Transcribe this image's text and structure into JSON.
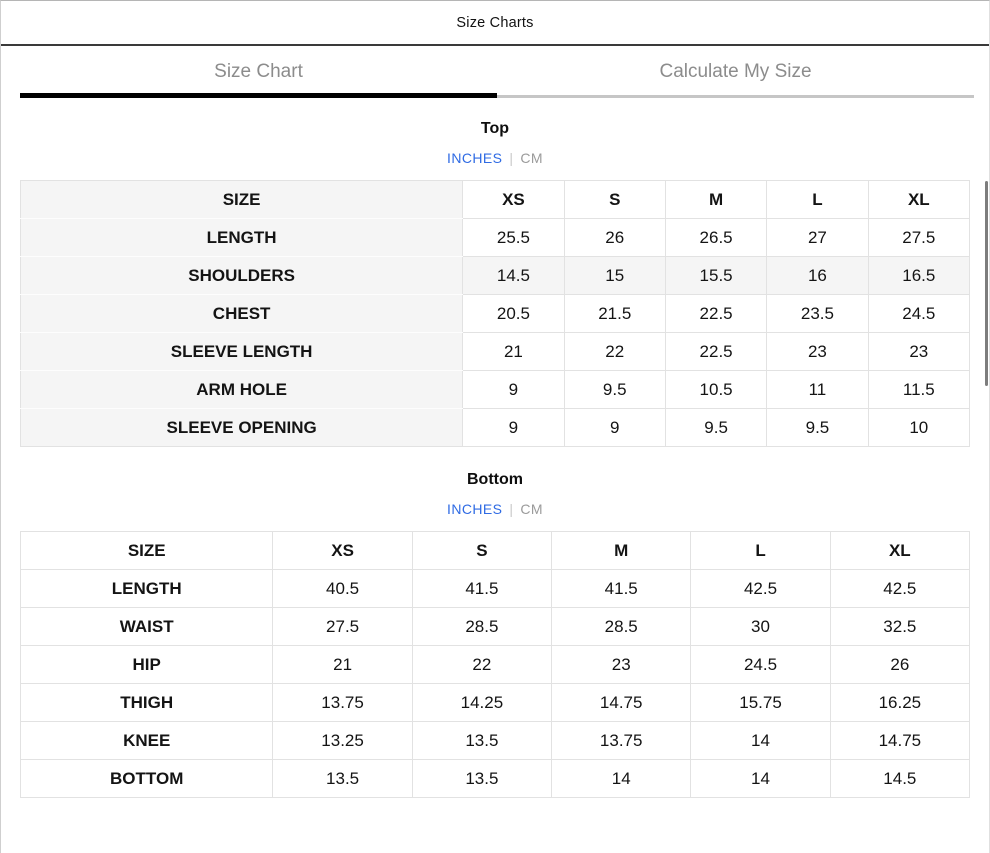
{
  "modal": {
    "title": "Size Charts",
    "close_icon": "✕"
  },
  "tabs": [
    {
      "label": "Size Chart",
      "active": true
    },
    {
      "label": "Calculate My Size",
      "active": false
    }
  ],
  "unit_toggle": {
    "inches": "INCHES",
    "separator": "|",
    "cm": "CM",
    "selected": "INCHES"
  },
  "colors": {
    "accent_blue": "#2f6be4",
    "inactive_gray": "#9b9b9b",
    "tab_gray": "#8c8c8c",
    "row_highlight": "#f5f5f5",
    "active_tab_underline": "#000000"
  },
  "chart_data": [
    {
      "type": "table",
      "title": "Top",
      "unit": "INCHES",
      "columns": [
        "SIZE",
        "XS",
        "S",
        "M",
        "L",
        "XL"
      ],
      "rows": [
        {
          "label": "LENGTH",
          "values": [
            "25.5",
            "26",
            "26.5",
            "27",
            "27.5"
          ],
          "highlight": false
        },
        {
          "label": "SHOULDERS",
          "values": [
            "14.5",
            "15",
            "15.5",
            "16",
            "16.5"
          ],
          "highlight": true
        },
        {
          "label": "CHEST",
          "values": [
            "20.5",
            "21.5",
            "22.5",
            "23.5",
            "24.5"
          ],
          "highlight": false
        },
        {
          "label": "SLEEVE LENGTH",
          "values": [
            "21",
            "22",
            "22.5",
            "23",
            "23"
          ],
          "highlight": false
        },
        {
          "label": "ARM HOLE",
          "values": [
            "9",
            "9.5",
            "10.5",
            "11",
            "11.5"
          ],
          "highlight": false
        },
        {
          "label": "SLEEVE OPENING",
          "values": [
            "9",
            "9",
            "9.5",
            "9.5",
            "10"
          ],
          "highlight": false
        }
      ]
    },
    {
      "type": "table",
      "title": "Bottom",
      "unit": "INCHES",
      "columns": [
        "SIZE",
        "XS",
        "S",
        "M",
        "L",
        "XL"
      ],
      "rows": [
        {
          "label": "LENGTH",
          "values": [
            "40.5",
            "41.5",
            "41.5",
            "42.5",
            "42.5"
          ],
          "highlight": false
        },
        {
          "label": "WAIST",
          "values": [
            "27.5",
            "28.5",
            "28.5",
            "30",
            "32.5"
          ],
          "highlight": false
        },
        {
          "label": "HIP",
          "values": [
            "21",
            "22",
            "23",
            "24.5",
            "26"
          ],
          "highlight": false
        },
        {
          "label": "THIGH",
          "values": [
            "13.75",
            "14.25",
            "14.75",
            "15.75",
            "16.25"
          ],
          "highlight": false
        },
        {
          "label": "KNEE",
          "values": [
            "13.25",
            "13.5",
            "13.75",
            "14",
            "14.75"
          ],
          "highlight": false
        },
        {
          "label": "BOTTOM",
          "values": [
            "13.5",
            "13.5",
            "14",
            "14",
            "14.5"
          ],
          "highlight": false
        }
      ]
    }
  ]
}
